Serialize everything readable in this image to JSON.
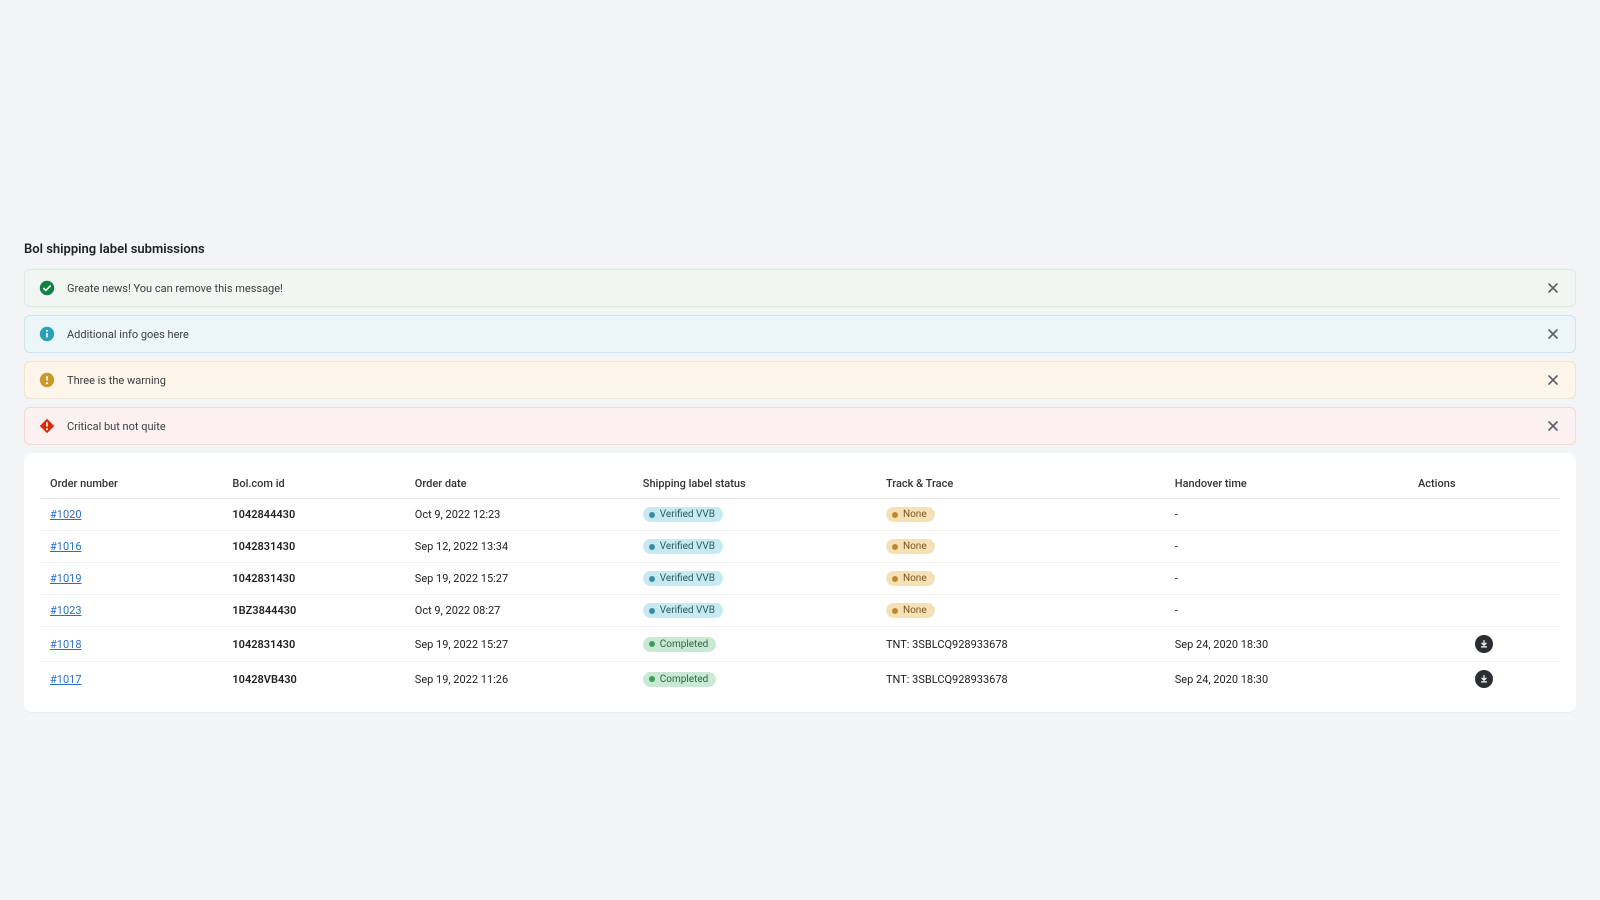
{
  "page": {
    "title": "Bol shipping label submissions"
  },
  "banners": [
    {
      "type": "success",
      "text": "Greate news! You can remove this message!",
      "bg": "#f0f7f2",
      "border": "#dfe9e2",
      "icon_bg": "#108043"
    },
    {
      "type": "info",
      "text": "Additional info goes here",
      "bg": "#ecf6f9",
      "border": "#cce6ed",
      "icon_bg": "#2aa0b5"
    },
    {
      "type": "warning",
      "text": "Three is the warning",
      "bg": "#fdf5e9",
      "border": "#f4e4c9",
      "icon_bg": "#c79a2d"
    },
    {
      "type": "error",
      "text": "Critical but not quite",
      "bg": "#fcf1f0",
      "border": "#f3dad8",
      "icon_bg": "#d82c0d"
    }
  ],
  "table": {
    "columns": [
      "Order number",
      "Bol.com id",
      "Order date",
      "Shipping label status",
      "Track & Trace",
      "Handover time",
      "Actions"
    ],
    "status_styles": {
      "Verified VVB": {
        "bg": "#c8e9f0",
        "color": "#2a5965",
        "dot": "#3b8da0"
      },
      "Completed": {
        "bg": "#c9e9d4",
        "color": "#2b6540",
        "dot": "#3d9c5e"
      },
      "None": {
        "bg": "#f5e0ba",
        "color": "#7a5a20",
        "dot": "#b98a2e"
      }
    },
    "rows": [
      {
        "order": "#1020",
        "bol_id": "1042844430",
        "date": "Oct 9, 2022 12:23",
        "status": "Verified VVB",
        "track_status": "None",
        "track_text": "",
        "handover": "-",
        "has_action": false
      },
      {
        "order": "#1016",
        "bol_id": "1042831430",
        "date": "Sep 12, 2022 13:34",
        "status": "Verified VVB",
        "track_status": "None",
        "track_text": "",
        "handover": "-",
        "has_action": false
      },
      {
        "order": "#1019",
        "bol_id": "1042831430",
        "date": "Sep 19, 2022 15:27",
        "status": "Verified VVB",
        "track_status": "None",
        "track_text": "",
        "handover": "-",
        "has_action": false
      },
      {
        "order": "#1023",
        "bol_id": "1BZ3844430",
        "date": "Oct 9, 2022 08:27",
        "status": "Verified VVB",
        "track_status": "None",
        "track_text": "",
        "handover": "-",
        "has_action": false
      },
      {
        "order": "#1018",
        "bol_id": "1042831430",
        "date": "Sep 19, 2022 15:27",
        "status": "Completed",
        "track_status": "",
        "track_text": "TNT: 3SBLCQ928933678",
        "handover": "Sep 24, 2020 18:30",
        "has_action": true
      },
      {
        "order": "#1017",
        "bol_id": "10428VB430",
        "date": "Sep 19, 2022 11:26",
        "status": "Completed",
        "track_status": "",
        "track_text": "TNT: 3SBLCQ928933678",
        "handover": "Sep 24, 2020 18:30",
        "has_action": true
      }
    ]
  }
}
